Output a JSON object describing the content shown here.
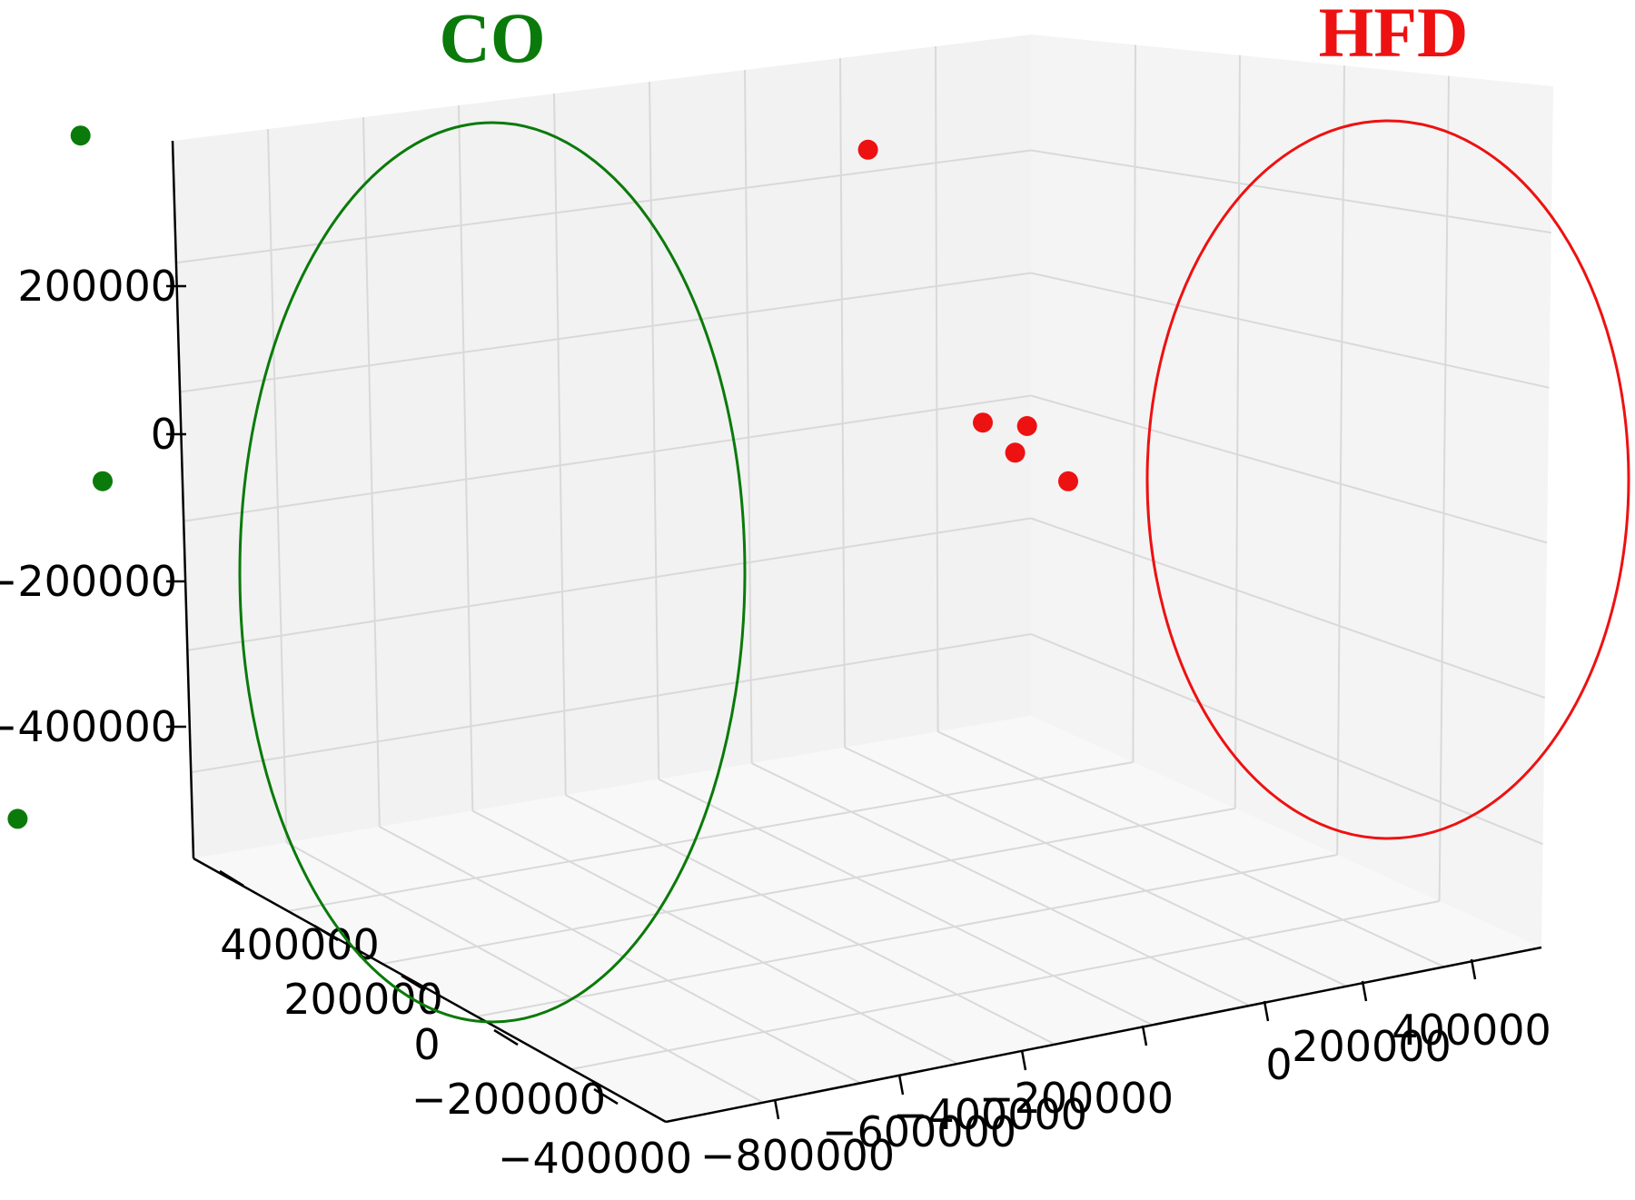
{
  "chart_data": {
    "type": "scatter",
    "dimensions": 3,
    "title": "",
    "xlabel": "",
    "ylabel": "",
    "zlabel": "",
    "grid": true,
    "x_ticks": [
      "−800000",
      "−600000",
      "−400000",
      "−200000",
      "0",
      "200000",
      "400000"
    ],
    "y_ticks": [
      "400000",
      "200000",
      "0",
      "−200000",
      "−400000"
    ],
    "z_ticks": [
      "200000",
      "0",
      "−200000",
      "−400000"
    ],
    "groups": [
      {
        "label": "CO",
        "color": "#0a7a0a",
        "points": [
          {
            "x": -800000,
            "y": 300000,
            "z": 180000
          },
          {
            "x": -650000,
            "y": 300000,
            "z": 230000
          },
          {
            "x": -660000,
            "y": 150000,
            "z": -80000
          },
          {
            "x": -820000,
            "y": 200000,
            "z": -170000
          },
          {
            "x": -700000,
            "y": 380000,
            "z": -420000
          }
        ]
      },
      {
        "label": "HFD",
        "color": "#ee1111",
        "points": [
          {
            "x": 200000,
            "y": 300000,
            "z": 120000
          },
          {
            "x": 300000,
            "y": 200000,
            "z": -140000
          },
          {
            "x": 330000,
            "y": 180000,
            "z": -170000
          },
          {
            "x": 350000,
            "y": 210000,
            "z": -150000
          },
          {
            "x": 380000,
            "y": 150000,
            "z": -200000
          }
        ]
      }
    ]
  }
}
